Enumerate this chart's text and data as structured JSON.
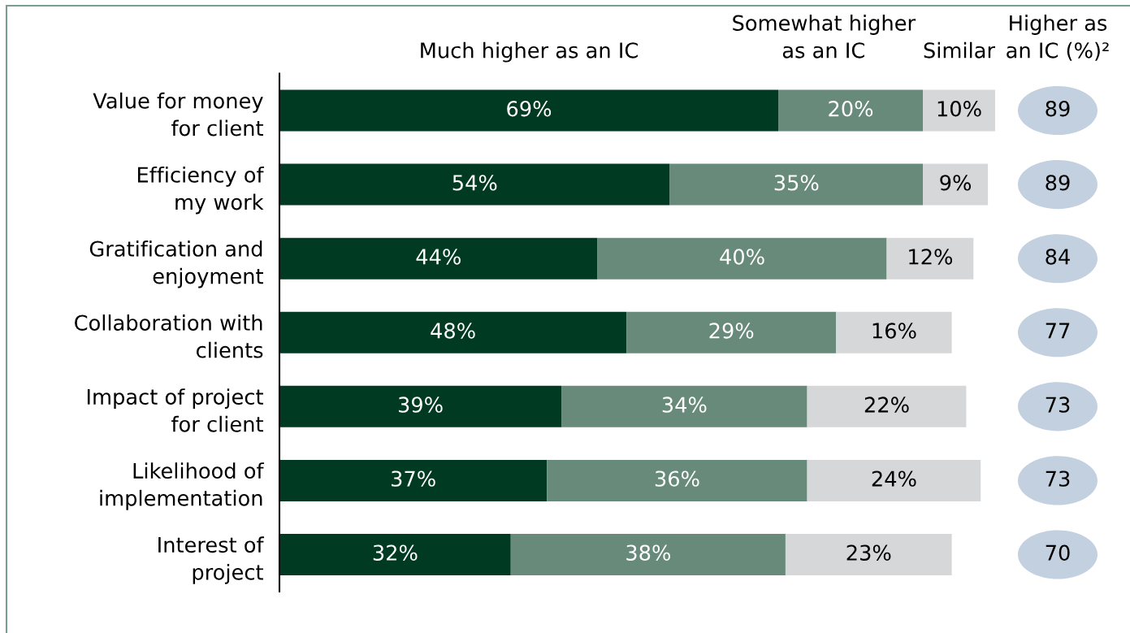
{
  "chart_data": [
    {
      "type": "bar",
      "orientation": "horizontal",
      "stacked": true,
      "tick_labels": "y",
      "categories": [
        "Value for money\nfor client",
        "Efficiency of\nmy work",
        "Gratification and\nenjoyment",
        "Collaboration with\nclients",
        "Impact of project\nfor client",
        "Likelihood of\nimplementation",
        "Interest of\nproject"
      ],
      "series": [
        {
          "name": "Much higher as an IC",
          "color": "#003a22",
          "values": [
            69,
            54,
            44,
            48,
            39,
            37,
            32
          ],
          "value_labels": [
            "69%",
            "54%",
            "44%",
            "48%",
            "39%",
            "37%",
            "32%"
          ]
        },
        {
          "name": "Somewhat higher\nas an IC",
          "color": "#678a7a",
          "values": [
            20,
            35,
            40,
            29,
            34,
            36,
            38
          ],
          "value_labels": [
            "20%",
            "35%",
            "40%",
            "29%",
            "34%",
            "36%",
            "38%"
          ]
        },
        {
          "name": "Similar",
          "color": "#d6d7d9",
          "values": [
            10,
            9,
            12,
            16,
            22,
            24,
            23
          ],
          "value_labels": [
            "10%",
            "9%",
            "12%",
            "16%",
            "22%",
            "24%",
            "23%"
          ]
        }
      ]
    },
    {
      "type": "other",
      "title": "Higher as\nan IC (%)²",
      "categories": [
        null,
        null,
        null,
        null,
        null,
        null,
        null
      ],
      "values": [
        89,
        89,
        84,
        77,
        73,
        73,
        70
      ],
      "data_labels": true
    }
  ]
}
